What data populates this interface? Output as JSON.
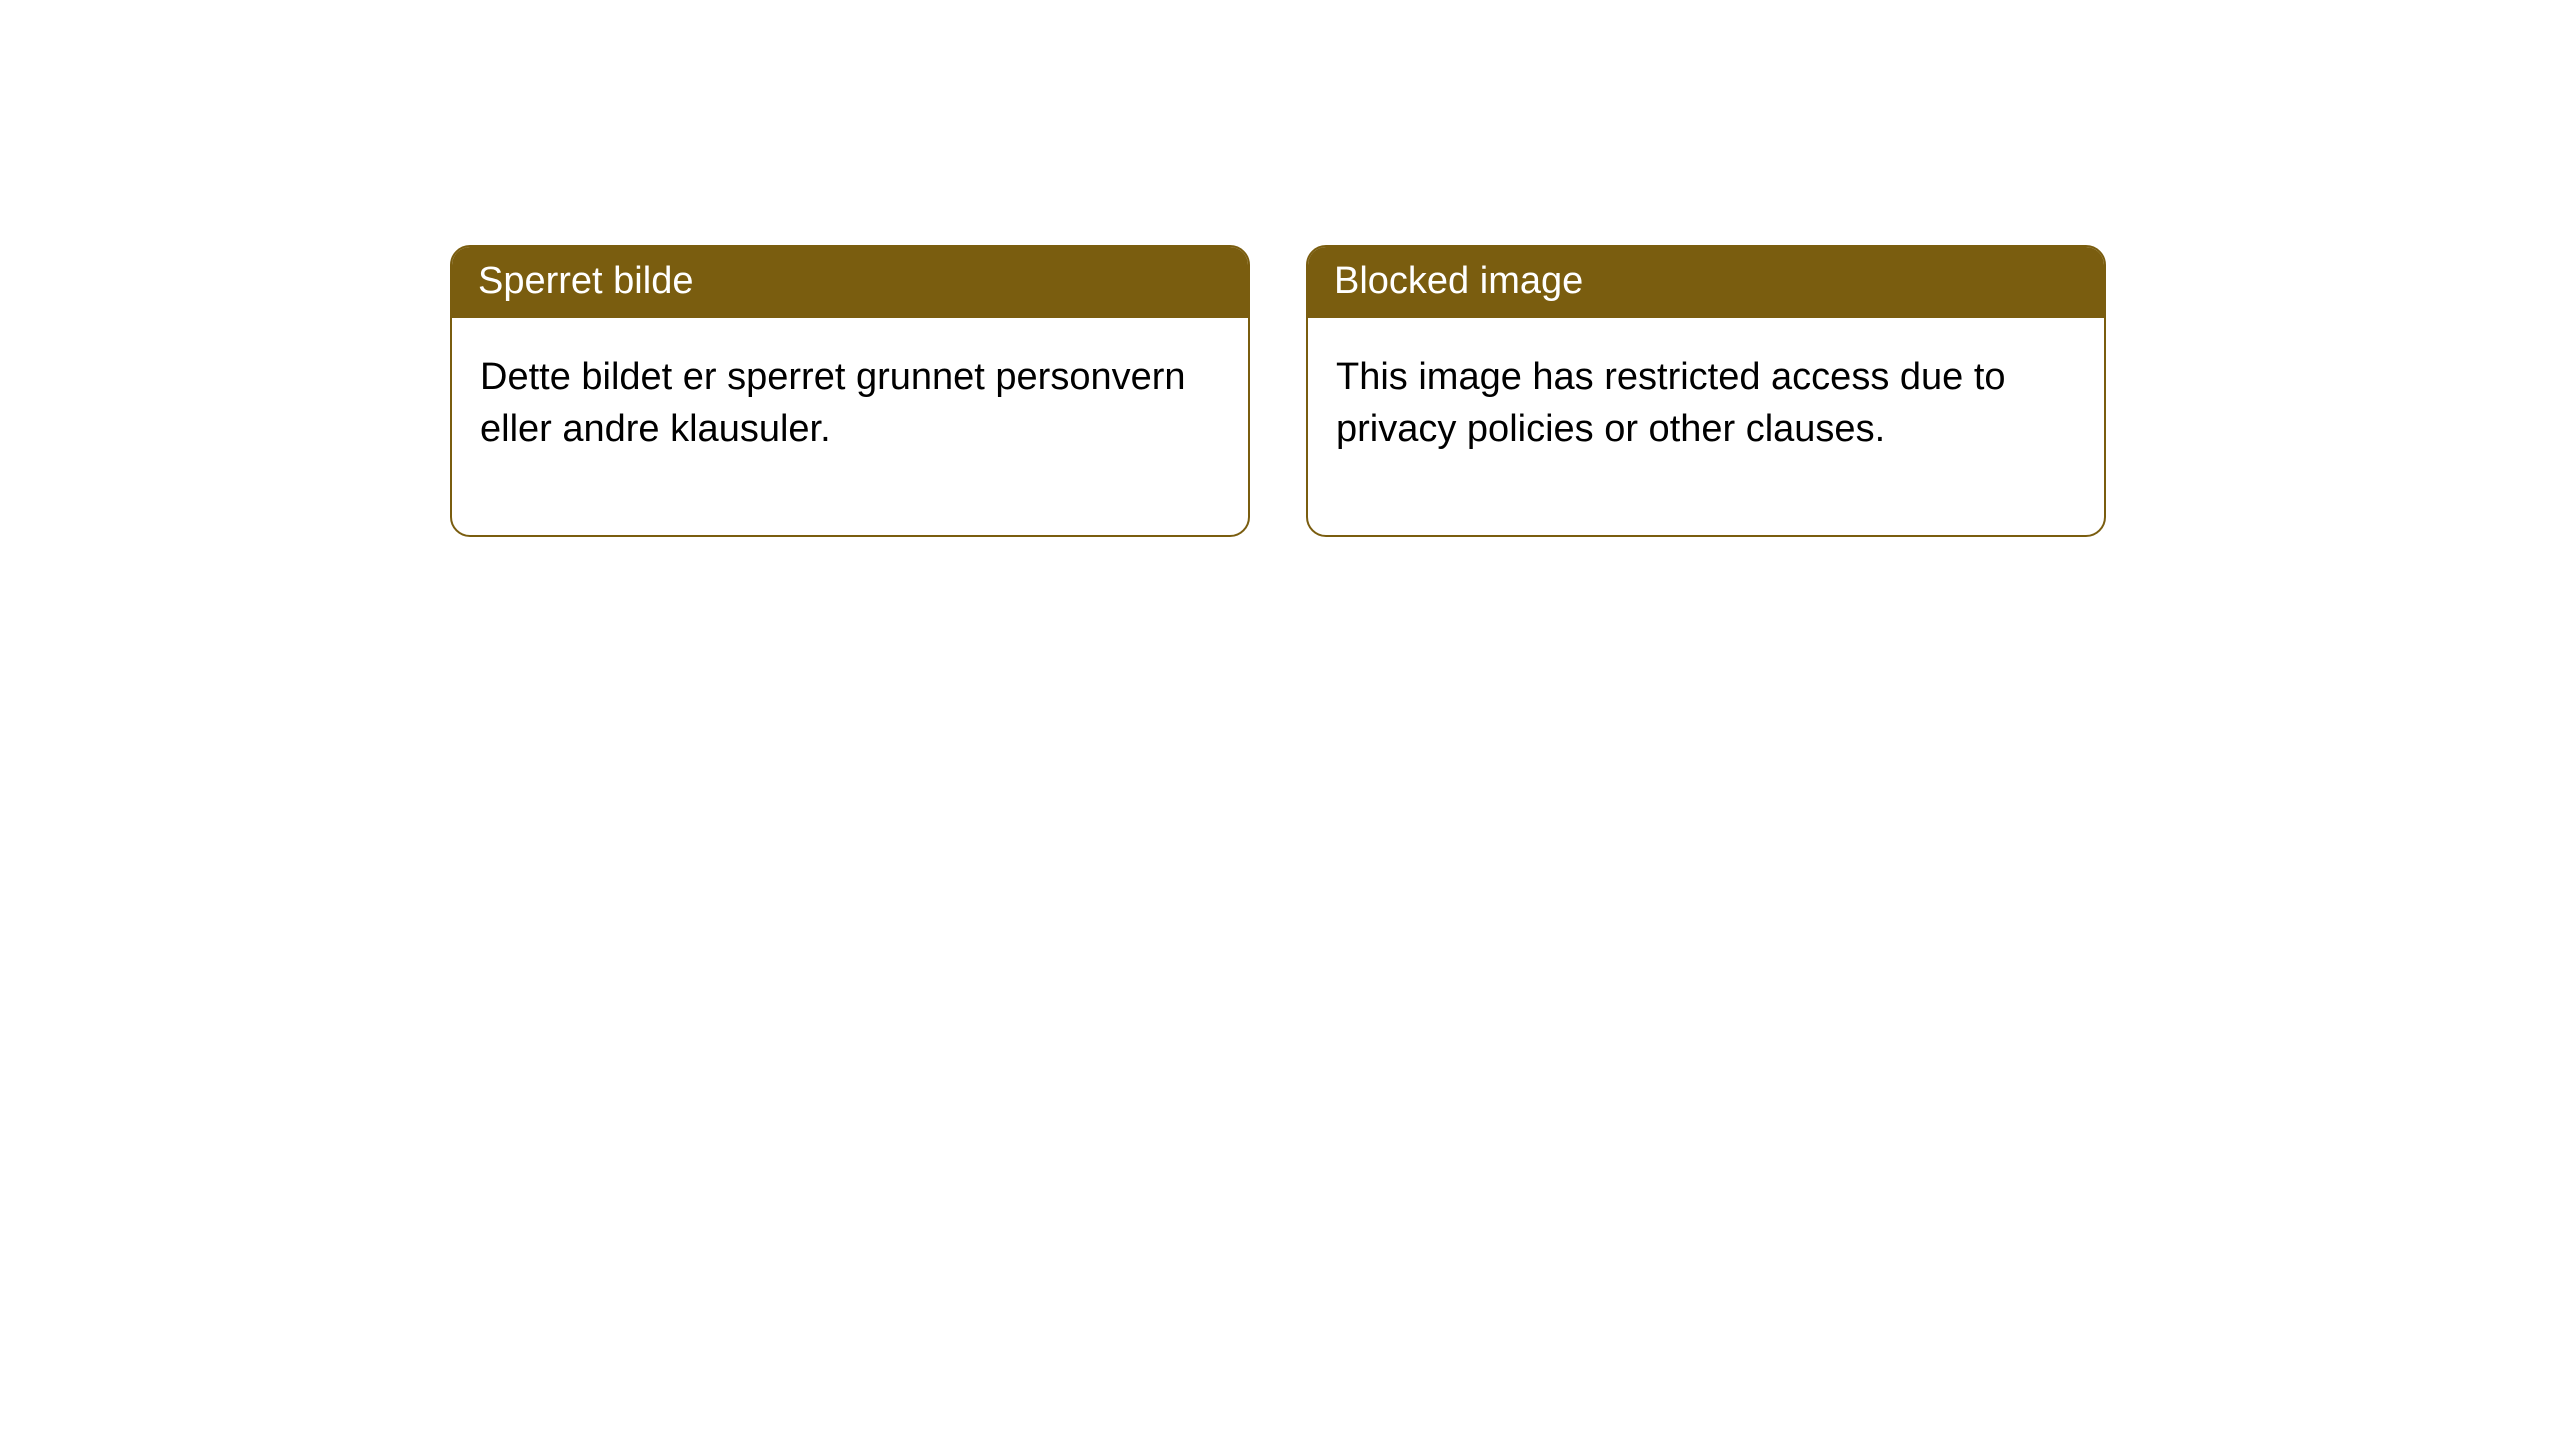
{
  "layout": {
    "background_color": "#ffffff",
    "card_border_color": "#7a5d0f",
    "card_border_width": 2,
    "card_border_radius": 20,
    "header_bg_color": "#7a5d0f",
    "header_text_color": "#ffffff",
    "body_text_color": "#000000",
    "header_fontsize": 38,
    "body_fontsize": 38
  },
  "notices": [
    {
      "title": "Sperret bilde",
      "body": "Dette bildet er sperret grunnet personvern eller andre klausuler."
    },
    {
      "title": "Blocked image",
      "body": "This image has restricted access due to privacy policies or other clauses."
    }
  ]
}
